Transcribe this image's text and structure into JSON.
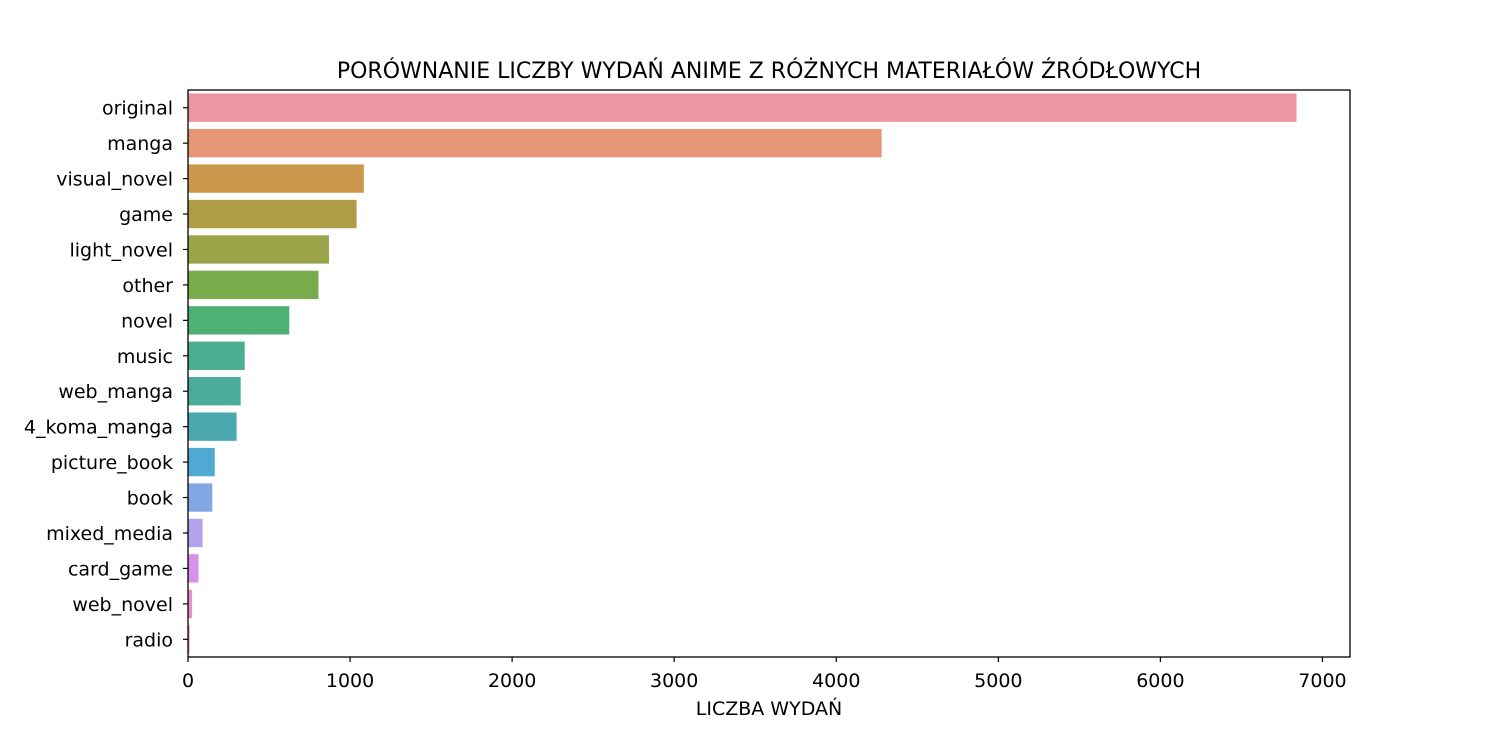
{
  "chart_data": {
    "type": "bar",
    "orientation": "horizontal",
    "title": "PORÓWNANIE LICZBY WYDAŃ ANIME Z RÓŻNYCH MATERIAŁÓW ŹRÓDŁOWYCH",
    "xlabel": "LICZBA WYDAŃ",
    "ylabel": "",
    "categories": [
      "original",
      "manga",
      "visual_novel",
      "game",
      "light_novel",
      "other",
      "novel",
      "music",
      "web_manga",
      "4_koma_manga",
      "picture_book",
      "book",
      "mixed_media",
      "card_game",
      "web_novel",
      "radio"
    ],
    "values": [
      6840,
      4280,
      1085,
      1040,
      870,
      805,
      625,
      350,
      325,
      300,
      165,
      150,
      90,
      65,
      25,
      10
    ],
    "colors": [
      "#ec96a3",
      "#e69575",
      "#cb984b",
      "#ae9d45",
      "#9aa54a",
      "#78ac4b",
      "#4cb173",
      "#4aae90",
      "#4aab9b",
      "#4aa8ae",
      "#4fa9d3",
      "#83a7e3",
      "#b3a3ec",
      "#da90e8",
      "#e990d1",
      "#ea94b6"
    ],
    "xlim": [
      0,
      7170
    ],
    "xticks": [
      0,
      1000,
      2000,
      3000,
      4000,
      5000,
      6000,
      7000
    ],
    "grid": false,
    "legend": "none"
  }
}
